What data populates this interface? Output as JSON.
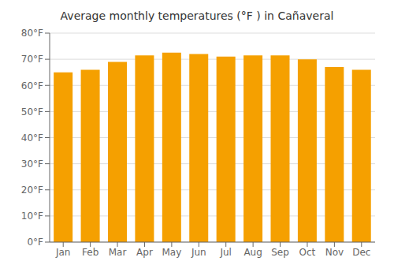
{
  "chart_data": {
    "type": "bar",
    "title": "Average monthly temperatures (°F ) in Cañaveral",
    "categories": [
      "Jan",
      "Feb",
      "Mar",
      "Apr",
      "May",
      "Jun",
      "Jul",
      "Aug",
      "Sep",
      "Oct",
      "Nov",
      "Dec"
    ],
    "values": [
      65,
      66,
      69,
      71.5,
      72.5,
      72,
      71,
      71.5,
      71.5,
      70,
      67,
      66
    ],
    "color": "#F5A000",
    "ylim": [
      0,
      80
    ],
    "yticks": [
      {
        "value": 0,
        "label": "0°F"
      },
      {
        "value": 10,
        "label": "10°F"
      },
      {
        "value": 20,
        "label": "20°F"
      },
      {
        "value": 30,
        "label": "30°F"
      },
      {
        "value": 40,
        "label": "40°F"
      },
      {
        "value": 50,
        "label": "50°F"
      },
      {
        "value": 60,
        "label": "60°F"
      },
      {
        "value": 70,
        "label": "70°F"
      },
      {
        "value": 80,
        "label": "80°F"
      }
    ],
    "grid": true
  }
}
